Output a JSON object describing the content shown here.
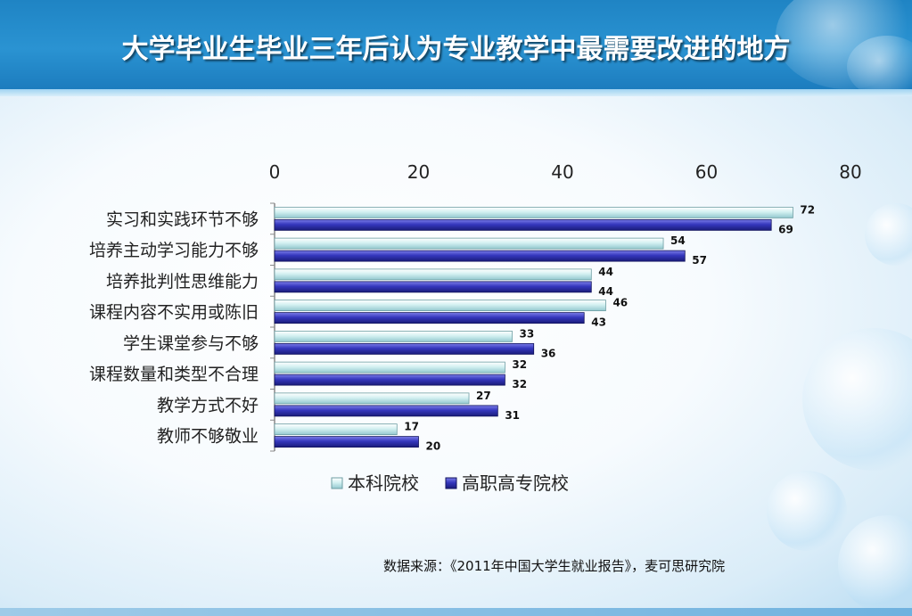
{
  "page": {
    "title": "大学毕业生毕业三年后认为专业教学中最需要改进的地方",
    "source": "数据来源：《2011年中国大学生就业报告》，麦可思研究院"
  },
  "colors": {
    "header": "#1f84c4",
    "series1": "#b9e3e6",
    "series2": "#2d2fae"
  },
  "chart_data": {
    "type": "bar",
    "orientation": "horizontal",
    "title": "",
    "xlabel": "",
    "ylabel": "",
    "xlim": [
      0,
      80
    ],
    "x_ticks": [
      "0",
      "20",
      "40",
      "60",
      "80"
    ],
    "x_axis_position": "top",
    "grid": false,
    "legend_position": "bottom",
    "categories": [
      "实习和实践环节不够",
      "培养主动学习能力不够",
      "培养批判性思维能力",
      "课程内容不实用或陈旧",
      "学生课堂参与不够",
      "课程数量和类型不合理",
      "教学方式不好",
      "教师不够敬业"
    ],
    "series": [
      {
        "name": "本科院校",
        "values": [
          72,
          54,
          44,
          46,
          33,
          32,
          27,
          17
        ]
      },
      {
        "name": "高职高专院校",
        "values": [
          69,
          57,
          44,
          43,
          36,
          32,
          31,
          20
        ]
      }
    ]
  }
}
